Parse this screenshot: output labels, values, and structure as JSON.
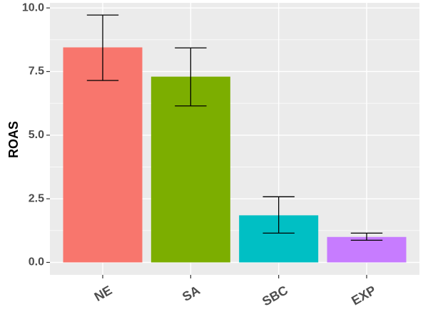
{
  "chart_data": {
    "type": "bar",
    "title": "",
    "xlabel": "",
    "ylabel": "ROAS",
    "categories": [
      "NE",
      "SA",
      "SBC",
      "EXP"
    ],
    "values": [
      8.45,
      7.3,
      1.85,
      1.0
    ],
    "error_low": [
      7.15,
      6.15,
      1.15,
      0.87
    ],
    "error_high": [
      9.72,
      8.43,
      2.58,
      1.15
    ],
    "colors": [
      "#F8766D",
      "#7CAE00",
      "#00BFC4",
      "#C77CFF"
    ],
    "ylim": [
      -0.49,
      10.2
    ],
    "yticks": [
      0.0,
      2.5,
      5.0,
      7.5,
      10.0
    ],
    "ytick_labels": [
      "0.0",
      "2.5",
      "5.0",
      "7.5",
      "10.0"
    ],
    "grid": true,
    "legend": "none",
    "panel_background": "#EBEBEB",
    "grid_color": "#FFFFFF",
    "error_bar_color": "#000000"
  }
}
